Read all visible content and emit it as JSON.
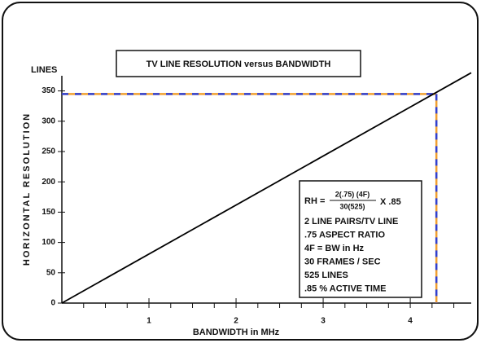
{
  "chart_data": {
    "type": "line",
    "title": "TV LINE RESOLUTION versus BANDWIDTH",
    "x_label": "BANDWIDTH in MHz",
    "y_label": "HORIZONTAL RESOLUTION",
    "y_unit": "LINES",
    "x": [
      0,
      4.7
    ],
    "series": [
      {
        "color": "#000000",
        "values": [
          0,
          380
        ]
      }
    ],
    "xlim": [
      0,
      4.7
    ],
    "ylim": [
      0,
      375
    ],
    "xticks": [
      1,
      2,
      3,
      4
    ],
    "xminorticks": [
      0.25,
      0.5,
      0.75,
      1.25,
      1.5,
      1.75,
      2.25,
      2.5,
      2.75,
      3.25,
      3.5,
      3.75,
      4.25,
      4.5
    ],
    "yticks": [
      0,
      50,
      100,
      150,
      200,
      250,
      300,
      350
    ],
    "reference": {
      "x": 4.3,
      "y": 345,
      "colors": [
        "#f0a030",
        "#3040d0"
      ]
    },
    "formula": {
      "lhs": "RH =",
      "numerator": "2(.75) (4F)",
      "denominator": "30(525)",
      "rhs": "X .85",
      "notes": [
        "2 LINE PAIRS/TV LINE",
        ".75 ASPECT RATIO",
        "4F = BW in Hz",
        "30 FRAMES / SEC",
        "525 LINES",
        ".85 % ACTIVE TIME"
      ]
    }
  }
}
